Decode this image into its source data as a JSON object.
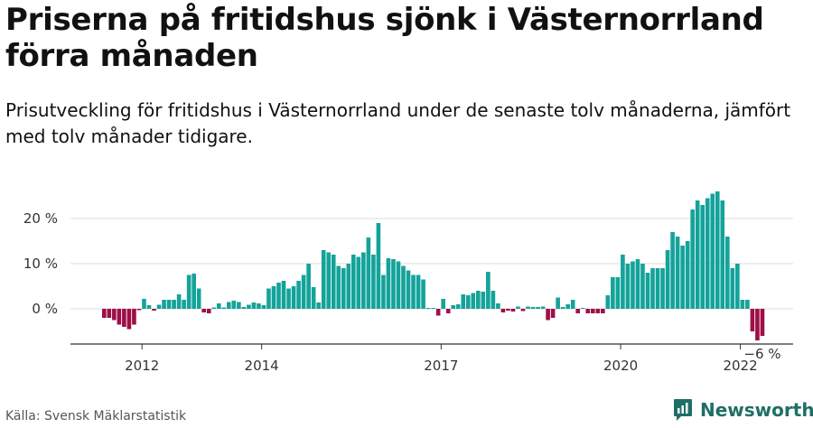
{
  "title": "Priserna på fritidshus sjönk i Västernorrland förra månaden",
  "subtitle": "Prisutveckling för fritidshus i Västernorrland under de senaste tolv månaderna, jämfört med tolv månader tidigare.",
  "source": "Källa: Svensk Mäklarstatistik",
  "brand": "Newsworthy",
  "colors": {
    "positive": "#14a39a",
    "negative": "#9e0f47",
    "grid": "#dddddd",
    "axis": "#333333",
    "brand": "#1f6f66"
  },
  "chart_data": {
    "type": "bar",
    "ylabel": "",
    "xlabel": "",
    "yticks": [
      {
        "value": 0,
        "label": "0 %"
      },
      {
        "value": 10,
        "label": "10 %"
      },
      {
        "value": 20,
        "label": "20 %"
      }
    ],
    "xticks": [
      {
        "year": 2012,
        "label": "2012"
      },
      {
        "year": 2014,
        "label": "2014"
      },
      {
        "year": 2017,
        "label": "2017"
      },
      {
        "year": 2020,
        "label": "2020"
      },
      {
        "year": 2022,
        "label": "2022"
      }
    ],
    "x_start": "2011-05",
    "last_label": "−6 %",
    "values": [
      -2.0,
      -2.0,
      -2.5,
      -3.5,
      -4.0,
      -4.5,
      -3.5,
      -0.3,
      2.2,
      0.8,
      -0.4,
      0.9,
      2.0,
      2.0,
      2.0,
      3.2,
      2.0,
      7.5,
      7.8,
      4.5,
      -0.8,
      -1.0,
      0.3,
      1.2,
      0.3,
      1.5,
      1.8,
      1.5,
      0.4,
      0.9,
      1.4,
      1.2,
      0.8,
      4.5,
      5.0,
      5.8,
      6.2,
      4.5,
      5.0,
      6.2,
      7.5,
      10.0,
      4.8,
      1.4,
      13.0,
      12.5,
      12.0,
      9.5,
      9.0,
      10.0,
      12.0,
      11.5,
      12.5,
      15.8,
      12.0,
      19.0,
      7.5,
      11.2,
      11.0,
      10.5,
      9.5,
      8.5,
      7.5,
      7.5,
      6.5,
      0.2,
      0.2,
      -1.5,
      2.2,
      -1.0,
      0.8,
      1.0,
      3.2,
      3.0,
      3.5,
      4.0,
      3.8,
      8.2,
      4.0,
      1.2,
      -0.8,
      -0.4,
      -0.6,
      0.5,
      -0.5,
      0.5,
      0.4,
      0.4,
      0.5,
      -2.5,
      -2.0,
      2.5,
      0.4,
      1.0,
      2.0,
      -1.0,
      0.2,
      -1.0,
      -1.0,
      -1.0,
      -1.0,
      3.0,
      7.0,
      7.0,
      12.0,
      10.0,
      10.5,
      11.0,
      10.0,
      8.0,
      9.0,
      9.0,
      9.0,
      13.0,
      17.0,
      16.0,
      14.0,
      15.0,
      22.0,
      24.0,
      23.0,
      24.5,
      25.5,
      26.0,
      24.0,
      16.0,
      9.0,
      10.0,
      2.0,
      2.0,
      -5.0,
      -7.0,
      -6.0
    ]
  }
}
